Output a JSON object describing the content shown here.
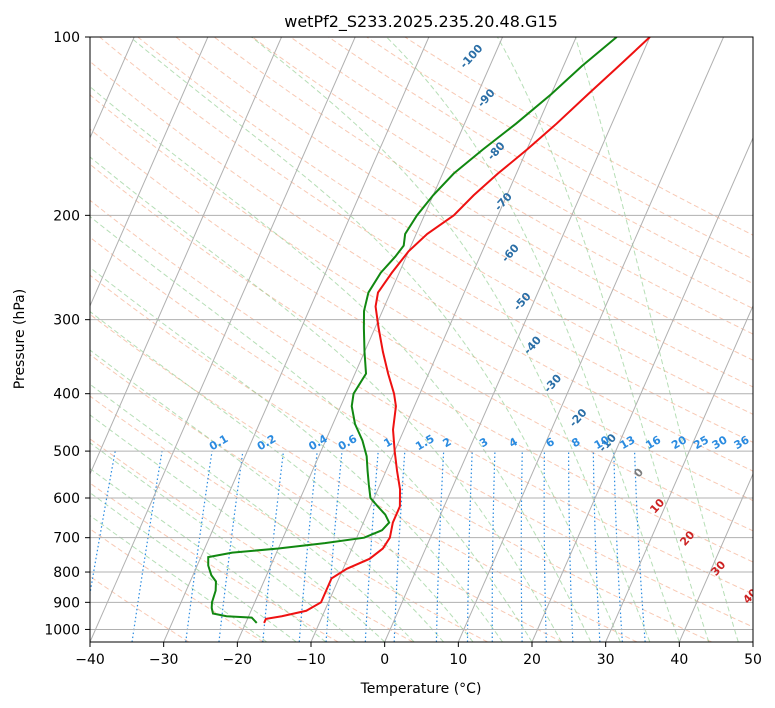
{
  "chart_data": {
    "type": "line",
    "title": "wetPf2_S233.2025.235.20.48.G15",
    "xlabel": "Temperature (°C)",
    "ylabel": "Pressure (hPa)",
    "xlim": [
      -40,
      50
    ],
    "ylim": [
      1050,
      100
    ],
    "x_ticks": [
      -40,
      -30,
      -20,
      -10,
      0,
      10,
      20,
      30,
      40,
      50
    ],
    "x_tick_labels": [
      "−40",
      "−30",
      "−20",
      "−10",
      "0",
      "10",
      "20",
      "30",
      "40",
      "50"
    ],
    "y_ticks": [
      100,
      200,
      300,
      400,
      500,
      600,
      700,
      800,
      900,
      1000
    ],
    "y_tick_labels": [
      "100",
      "200",
      "300",
      "400",
      "500",
      "600",
      "700",
      "800",
      "900",
      "1000"
    ],
    "colors": {
      "temperature": "#ee1111",
      "dewpoint": "#118811",
      "grid": "#b0b0b0",
      "dry_adiabat": "#f4a582",
      "moist_adiabat": "#8fcc8f",
      "mixing_ratio": "#2a8be0",
      "isotherm": "#7d7d7d",
      "dry_label": "#2a6ea6",
      "moist_label": "#cc2222",
      "mixing_label": "#2a8be0"
    },
    "series": [
      {
        "name": "Temperature",
        "points": [
          {
            "p": 975,
            "t": -17.5
          },
          {
            "p": 960,
            "t": -17.5
          },
          {
            "p": 950,
            "t": -15.5
          },
          {
            "p": 930,
            "t": -12.5
          },
          {
            "p": 900,
            "t": -11
          },
          {
            "p": 860,
            "t": -11
          },
          {
            "p": 820,
            "t": -11
          },
          {
            "p": 790,
            "t": -9.5
          },
          {
            "p": 760,
            "t": -7
          },
          {
            "p": 730,
            "t": -5.8
          },
          {
            "p": 700,
            "t": -5.5
          },
          {
            "p": 660,
            "t": -6
          },
          {
            "p": 620,
            "t": -6
          },
          {
            "p": 580,
            "t": -7
          },
          {
            "p": 540,
            "t": -8.5
          },
          {
            "p": 500,
            "t": -10
          },
          {
            "p": 460,
            "t": -11.5
          },
          {
            "p": 420,
            "t": -12.5
          },
          {
            "p": 400,
            "t": -13.5
          },
          {
            "p": 370,
            "t": -15.5
          },
          {
            "p": 340,
            "t": -17.5
          },
          {
            "p": 310,
            "t": -19.5
          },
          {
            "p": 285,
            "t": -21.2
          },
          {
            "p": 270,
            "t": -21.7
          },
          {
            "p": 250,
            "t": -21
          },
          {
            "p": 230,
            "t": -20
          },
          {
            "p": 215,
            "t": -18.5
          },
          {
            "p": 200,
            "t": -16
          },
          {
            "p": 185,
            "t": -14.5
          },
          {
            "p": 170,
            "t": -12.5
          },
          {
            "p": 155,
            "t": -10
          },
          {
            "p": 140,
            "t": -7.5
          },
          {
            "p": 125,
            "t": -5
          },
          {
            "p": 112,
            "t": -2.5
          },
          {
            "p": 100,
            "t": 0
          }
        ]
      },
      {
        "name": "Dewpoint",
        "points": [
          {
            "p": 975,
            "t": -18.5
          },
          {
            "p": 955,
            "t": -19.5
          },
          {
            "p": 950,
            "t": -23
          },
          {
            "p": 940,
            "t": -25
          },
          {
            "p": 920,
            "t": -25.5
          },
          {
            "p": 900,
            "t": -25.8
          },
          {
            "p": 860,
            "t": -26
          },
          {
            "p": 830,
            "t": -26.5
          },
          {
            "p": 810,
            "t": -27.5
          },
          {
            "p": 780,
            "t": -28.5
          },
          {
            "p": 755,
            "t": -29
          },
          {
            "p": 742,
            "t": -26
          },
          {
            "p": 730,
            "t": -20
          },
          {
            "p": 715,
            "t": -14
          },
          {
            "p": 700,
            "t": -9
          },
          {
            "p": 680,
            "t": -7
          },
          {
            "p": 660,
            "t": -6.5
          },
          {
            "p": 640,
            "t": -7.5
          },
          {
            "p": 620,
            "t": -9
          },
          {
            "p": 600,
            "t": -10.5
          },
          {
            "p": 570,
            "t": -11.5
          },
          {
            "p": 540,
            "t": -12.5
          },
          {
            "p": 510,
            "t": -13.5
          },
          {
            "p": 480,
            "t": -15
          },
          {
            "p": 450,
            "t": -17
          },
          {
            "p": 420,
            "t": -18.5
          },
          {
            "p": 400,
            "t": -19
          },
          {
            "p": 370,
            "t": -18.5
          },
          {
            "p": 340,
            "t": -20
          },
          {
            "p": 310,
            "t": -21.5
          },
          {
            "p": 290,
            "t": -22.5
          },
          {
            "p": 270,
            "t": -23
          },
          {
            "p": 250,
            "t": -22.5
          },
          {
            "p": 235,
            "t": -21.5
          },
          {
            "p": 225,
            "t": -21
          },
          {
            "p": 215,
            "t": -21.5
          },
          {
            "p": 200,
            "t": -21
          },
          {
            "p": 185,
            "t": -20
          },
          {
            "p": 170,
            "t": -18.5
          },
          {
            "p": 155,
            "t": -16
          },
          {
            "p": 140,
            "t": -13
          },
          {
            "p": 125,
            "t": -10
          },
          {
            "p": 112,
            "t": -7.5
          },
          {
            "p": 100,
            "t": -4.5
          }
        ]
      }
    ],
    "dry_adiabat_labels": [
      {
        "text": "-100",
        "t": -23,
        "p": 108
      },
      {
        "text": "-90",
        "t": -18.5,
        "p": 127
      },
      {
        "text": "-80",
        "t": -14,
        "p": 156
      },
      {
        "text": "-70",
        "t": -10,
        "p": 190
      },
      {
        "text": "-60",
        "t": -6,
        "p": 232
      },
      {
        "text": "-50",
        "t": -1.5,
        "p": 280
      },
      {
        "text": "-40",
        "t": 2.5,
        "p": 332
      },
      {
        "text": "-30",
        "t": 7.5,
        "p": 385
      },
      {
        "text": "-20",
        "t": 13,
        "p": 440
      },
      {
        "text": "-10",
        "t": 18.5,
        "p": 485
      },
      {
        "text": "0",
        "t": 24.5,
        "p": 545
      }
    ],
    "moist_adiabat_labels": [
      {
        "text": "10",
        "t": 29,
        "p": 620
      },
      {
        "text": "20",
        "t": 35,
        "p": 703
      },
      {
        "text": "30",
        "t": 41,
        "p": 790
      },
      {
        "text": "40",
        "t": 47,
        "p": 880
      }
    ],
    "mixing_ratio_labels": [
      "0.1",
      "0.2",
      "0.4",
      "0.6",
      "1",
      "1.5",
      "2",
      "3",
      "4",
      "6",
      "8",
      "10",
      "13",
      "16",
      "20",
      "25",
      "30",
      "36"
    ],
    "mixing_ratio_label_temps": [
      -22.5,
      -16,
      -9,
      -5,
      0.5,
      5.5,
      8.5,
      13.5,
      17.5,
      22.5,
      26,
      29.5,
      33,
      36.5,
      40,
      43,
      45.5,
      48.5
    ]
  }
}
